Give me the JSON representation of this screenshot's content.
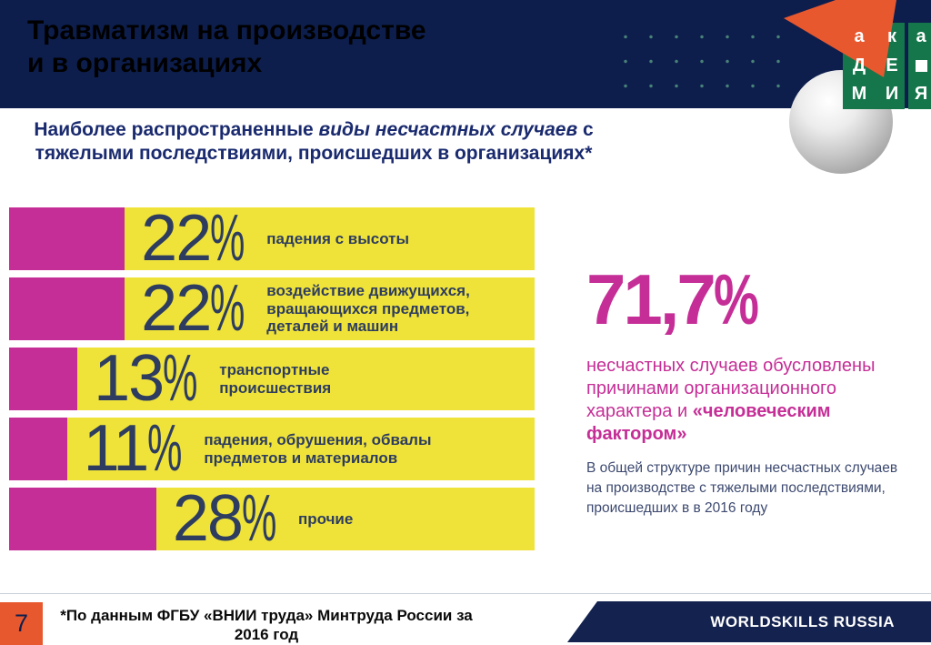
{
  "header": {
    "title_line1": "Травматизм на производстве",
    "title_line2": "и в организациях",
    "logo_letters": [
      "а",
      "к",
      "а",
      "Д",
      "Е",
      "М",
      "И",
      "Я"
    ]
  },
  "subtitle": {
    "part1": "Наиболее распространенные ",
    "italic": "виды несчастных случаев",
    "part2": " с тяжелыми последствиями, происшедших в организациях*"
  },
  "chart_data": {
    "type": "bar",
    "orientation": "horizontal",
    "title": "Наиболее распространенные виды несчастных случаев с тяжелыми последствиями, происшедших в организациях*",
    "unit": "%",
    "categories": [
      "падения с высоты",
      "воздействие движущихся, вращающихся предметов, деталей и машин",
      "транспортные происшествия",
      "падения, обрушения, обвалы предметов и материалов",
      "прочие"
    ],
    "values": [
      22,
      22,
      13,
      11,
      28
    ],
    "xlim": [
      0,
      100
    ],
    "rows": [
      {
        "value": 22,
        "display": "22",
        "label": "падения с высоты"
      },
      {
        "value": 22,
        "display": "22",
        "label": "воздействие движущихся,\nвращающихся предметов,\nдеталей и машин"
      },
      {
        "value": 13,
        "display": "13",
        "label": "транспортные\nпроисшествия"
      },
      {
        "value": 11,
        "display": "11",
        "label": "падения, обрушения, обвалы\nпредметов и материалов"
      },
      {
        "value": 28,
        "display": "28",
        "label": "прочие"
      }
    ]
  },
  "callout": {
    "big": "71,7",
    "unit": "%",
    "text_regular": "несчастных случаев обусловлены причинами организационного характера и ",
    "text_bold": "«человеческим фактором»",
    "note": "В общей структуре причин несчастных случаев на производстве с тяжелыми последствиями, происшедших в в 2016 году"
  },
  "footer": {
    "page_number": "7",
    "footnote": "*По данным ФГБУ «ВНИИ труда» Минтруда России за 2016 год",
    "brand": "WORLDSKILLS RUSSIA"
  },
  "colors": {
    "header_navy": "#0d1e4d",
    "bar_yellow": "#efe33a",
    "bar_magenta": "#c52e96",
    "accent_orange": "#e8582e",
    "logo_green": "#15764b",
    "footer_navy": "#14224f",
    "text_navy": "#2e3d5f"
  }
}
